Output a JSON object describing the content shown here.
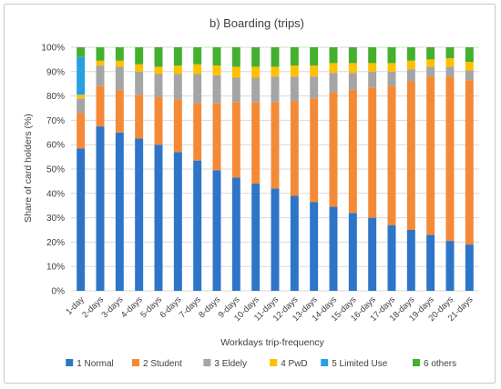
{
  "chart_data": {
    "type": "bar",
    "stacked": true,
    "title": "b) Boarding (trips)",
    "xlabel": "Workdays trip-frequency",
    "ylabel": "Share of card holders (%)",
    "ylim": [
      0,
      100
    ],
    "yticks": [
      "0%",
      "10%",
      "20%",
      "30%",
      "40%",
      "50%",
      "60%",
      "70%",
      "80%",
      "90%",
      "100%"
    ],
    "grid": true,
    "legend_position": "bottom",
    "categories": [
      "1-day",
      "2-days",
      "3-days",
      "4-days",
      "5-days",
      "6-days",
      "7-days",
      "8-days",
      "9-days",
      "10-days",
      "11-days",
      "12-days",
      "13-days",
      "14-days",
      "15-days",
      "16-days",
      "17-days",
      "18-days",
      "19-days",
      "20-days",
      "21-days"
    ],
    "series": [
      {
        "name": "1 Normal",
        "color": "#2e75c8",
        "values": [
          58.5,
          67.5,
          65,
          62.5,
          60,
          57,
          53.5,
          49.5,
          46.5,
          44,
          42,
          39,
          36.5,
          34.5,
          32,
          30,
          27,
          25,
          23,
          20.5,
          19
        ]
      },
      {
        "name": "2 Student",
        "color": "#f58a36",
        "values": [
          14.5,
          16.5,
          17.5,
          18,
          19.5,
          21.5,
          23.5,
          27.5,
          31,
          33.5,
          35.5,
          39,
          42.5,
          47,
          50.5,
          53.5,
          57,
          61,
          65,
          67.5,
          67.5
        ]
      },
      {
        "name": "3 Eldely",
        "color": "#a5a5a5",
        "values": [
          6,
          8.5,
          9.5,
          9.5,
          9.5,
          10.5,
          12,
          11.5,
          10,
          10,
          10.5,
          10,
          9,
          8,
          7,
          6.5,
          6,
          5,
          4,
          4,
          4
        ]
      },
      {
        "name": "4 PwD",
        "color": "#ffc000",
        "values": [
          1.5,
          2,
          2.5,
          3,
          3,
          3.5,
          4,
          4,
          4.5,
          4.5,
          4,
          4.5,
          4.5,
          4,
          4,
          3.5,
          3.5,
          3.5,
          3,
          3.5,
          3.5
        ]
      },
      {
        "name": "5 Limited Use",
        "color": "#26a0e0",
        "values": [
          15.5,
          0,
          0,
          0,
          0,
          0,
          0,
          0,
          0,
          0,
          0,
          0,
          0,
          0,
          0,
          0,
          0,
          0,
          0,
          0,
          0
        ]
      },
      {
        "name": "6 others",
        "color": "#44b02e",
        "values": [
          4,
          5.5,
          5.5,
          7,
          8,
          7.5,
          7,
          7.5,
          8,
          8,
          8,
          7.5,
          7.5,
          6.5,
          6.5,
          6.5,
          6.5,
          5.5,
          5,
          4.5,
          6
        ]
      }
    ]
  }
}
